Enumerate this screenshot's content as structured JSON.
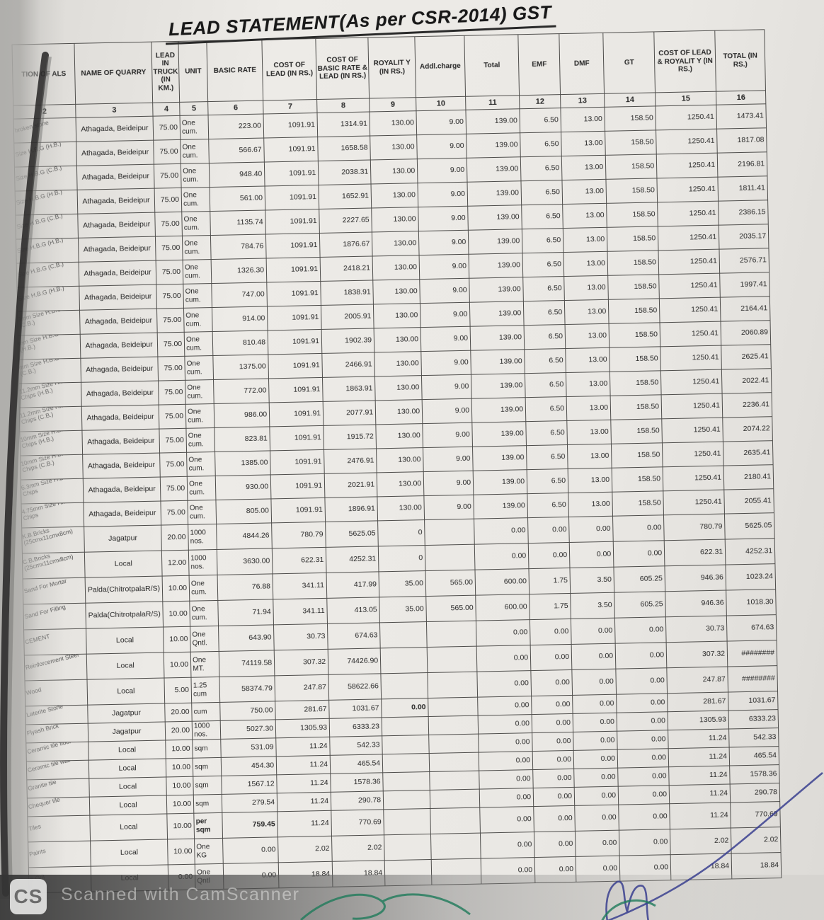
{
  "title": "LEAD STATEMENT(As per CSR-2014) GST",
  "watermark": {
    "logo": "CS",
    "text": "Scanned with CamScanner"
  },
  "pen_colors": {
    "blue": "#3a3f8f",
    "green": "#1e7a5a"
  },
  "table": {
    "columns": [
      {
        "key": "m",
        "label": "TION OF ALS",
        "num": "2"
      },
      {
        "key": "q",
        "label": "NAME OF QUARRY",
        "num": "3"
      },
      {
        "key": "lead",
        "label": "LEAD IN TRUCK (IN KM.)",
        "num": "4"
      },
      {
        "key": "unit",
        "label": "UNIT",
        "num": "5"
      },
      {
        "key": "basic",
        "label": "BASIC RATE",
        "num": "6"
      },
      {
        "key": "clead",
        "label": "COST OF LEAD (IN RS.)",
        "num": "7"
      },
      {
        "key": "cbl",
        "label": "COST OF BASIC RATE & LEAD (IN RS.)",
        "num": "8"
      },
      {
        "key": "roy",
        "label": "ROYALIT Y (IN RS.)",
        "num": "9"
      },
      {
        "key": "addl",
        "label": "Addl.charge",
        "num": "10"
      },
      {
        "key": "total",
        "label": "Total",
        "num": "11"
      },
      {
        "key": "emf",
        "label": "EMF",
        "num": "12"
      },
      {
        "key": "dmf",
        "label": "DMF",
        "num": "13"
      },
      {
        "key": "gt",
        "label": "GT",
        "num": "14"
      },
      {
        "key": "clr",
        "label": "COST OF LEAD & ROYALIT Y (IN RS.)",
        "num": "15"
      },
      {
        "key": "tot",
        "label": "TOTAL (IN RS.)",
        "num": "16"
      }
    ],
    "rows": [
      {
        "m": "broken stone",
        "q": "Athagada, Beideipur",
        "lead": "75.00",
        "unit": "One cum.",
        "basic": "223.00",
        "clead": "1091.91",
        "cbl": "1314.91",
        "roy": "130.00",
        "addl": "9.00",
        "total": "139.00",
        "emf": "6.50",
        "dmf": "13.00",
        "gt": "158.50",
        "clr": "1250.41",
        "tot": "1473.41"
      },
      {
        "m": "Size H.B.G (H.B.)",
        "q": "Athagada, Beideipur",
        "lead": "75.00",
        "unit": "One cum.",
        "basic": "566.67",
        "clead": "1091.91",
        "cbl": "1658.58",
        "roy": "130.00",
        "addl": "9.00",
        "total": "139.00",
        "emf": "6.50",
        "dmf": "13.00",
        "gt": "158.50",
        "clr": "1250.41",
        "tot": "1817.08"
      },
      {
        "m": "Size H.B.G (C.B.)",
        "q": "Athagada, Beideipur",
        "lead": "75.00",
        "unit": "One cum.",
        "basic": "948.40",
        "clead": "1091.91",
        "cbl": "2038.31",
        "roy": "130.00",
        "addl": "9.00",
        "total": "139.00",
        "emf": "6.50",
        "dmf": "13.00",
        "gt": "158.50",
        "clr": "1250.41",
        "tot": "2196.81"
      },
      {
        "m": "Size H.B.G (H.B.)",
        "q": "Athagada, Beideipur",
        "lead": "75.00",
        "unit": "One cum.",
        "basic": "561.00",
        "clead": "1091.91",
        "cbl": "1652.91",
        "roy": "130.00",
        "addl": "9.00",
        "total": "139.00",
        "emf": "6.50",
        "dmf": "13.00",
        "gt": "158.50",
        "clr": "1250.41",
        "tot": "1811.41"
      },
      {
        "m": "Size H.B.G (C.B.)",
        "q": "Athagada, Beideipur",
        "lead": "75.00",
        "unit": "One cum.",
        "basic": "1135.74",
        "clead": "1091.91",
        "cbl": "2227.65",
        "roy": "130.00",
        "addl": "9.00",
        "total": "139.00",
        "emf": "6.50",
        "dmf": "13.00",
        "gt": "158.50",
        "clr": "1250.41",
        "tot": "2386.15"
      },
      {
        "m": "Size H.B.G (H.B.)",
        "q": "Athagada, Beideipur",
        "lead": "75.00",
        "unit": "One cum.",
        "basic": "784.76",
        "clead": "1091.91",
        "cbl": "1876.67",
        "roy": "130.00",
        "addl": "9.00",
        "total": "139.00",
        "emf": "6.50",
        "dmf": "13.00",
        "gt": "158.50",
        "clr": "1250.41",
        "tot": "2035.17"
      },
      {
        "m": "Size H.B.G (C.B.)",
        "q": "Athagada, Beideipur",
        "lead": "75.00",
        "unit": "One cum.",
        "basic": "1326.30",
        "clead": "1091.91",
        "cbl": "2418.21",
        "roy": "130.00",
        "addl": "9.00",
        "total": "139.00",
        "emf": "6.50",
        "dmf": "13.00",
        "gt": "158.50",
        "clr": "1250.41",
        "tot": "2576.71"
      },
      {
        "m": "Size H.B.G (H.B.)",
        "q": "Athagada, Beideipur",
        "lead": "75.00",
        "unit": "One cum.",
        "basic": "747.00",
        "clead": "1091.91",
        "cbl": "1838.91",
        "roy": "130.00",
        "addl": "9.00",
        "total": "139.00",
        "emf": "6.50",
        "dmf": "13.00",
        "gt": "158.50",
        "clr": "1250.41",
        "tot": "1997.41"
      },
      {
        "m": "3mm Size H.B.G (C.B.)",
        "q": "Athagada, Beideipur",
        "lead": "75.00",
        "unit": "One cum.",
        "basic": "914.00",
        "clead": "1091.91",
        "cbl": "2005.91",
        "roy": "130.00",
        "addl": "9.00",
        "total": "139.00",
        "emf": "6.50",
        "dmf": "13.00",
        "gt": "158.50",
        "clr": "1250.41",
        "tot": "2164.41"
      },
      {
        "m": "mm Size H.B.G Chips (H.B.)",
        "q": "Athagada, Beideipur",
        "lead": "75.00",
        "unit": "One cum.",
        "basic": "810.48",
        "clead": "1091.91",
        "cbl": "1902.39",
        "roy": "130.00",
        "addl": "9.00",
        "total": "139.00",
        "emf": "6.50",
        "dmf": "13.00",
        "gt": "158.50",
        "clr": "1250.41",
        "tot": "2060.89"
      },
      {
        "m": "mm Size H.B.G Chips (C.B.)",
        "q": "Athagada, Beideipur",
        "lead": "75.00",
        "unit": "One cum.",
        "basic": "1375.00",
        "clead": "1091.91",
        "cbl": "2466.91",
        "roy": "130.00",
        "addl": "9.00",
        "total": "139.00",
        "emf": "6.50",
        "dmf": "13.00",
        "gt": "158.50",
        "clr": "1250.41",
        "tot": "2625.41"
      },
      {
        "m": "11.2mm Size H.B.G Chips (H.B.)",
        "q": "Athagada, Beideipur",
        "lead": "75.00",
        "unit": "One cum.",
        "basic": "772.00",
        "clead": "1091.91",
        "cbl": "1863.91",
        "roy": "130.00",
        "addl": "9.00",
        "total": "139.00",
        "emf": "6.50",
        "dmf": "13.00",
        "gt": "158.50",
        "clr": "1250.41",
        "tot": "2022.41"
      },
      {
        "m": "11.2mm Size H.B.G Chips (C.B.)",
        "q": "Athagada, Beideipur",
        "lead": "75.00",
        "unit": "One cum.",
        "basic": "986.00",
        "clead": "1091.91",
        "cbl": "2077.91",
        "roy": "130.00",
        "addl": "9.00",
        "total": "139.00",
        "emf": "6.50",
        "dmf": "13.00",
        "gt": "158.50",
        "clr": "1250.41",
        "tot": "2236.41"
      },
      {
        "m": "10mm Size H.B.G Chips (H.B.)",
        "q": "Athagada, Beideipur",
        "lead": "75.00",
        "unit": "One cum.",
        "basic": "823.81",
        "clead": "1091.91",
        "cbl": "1915.72",
        "roy": "130.00",
        "addl": "9.00",
        "total": "139.00",
        "emf": "6.50",
        "dmf": "13.00",
        "gt": "158.50",
        "clr": "1250.41",
        "tot": "2074.22"
      },
      {
        "m": "10mm Size H.B.G Chips (C.B.)",
        "q": "Athagada, Beideipur",
        "lead": "75.00",
        "unit": "One cum.",
        "basic": "1385.00",
        "clead": "1091.91",
        "cbl": "2476.91",
        "roy": "130.00",
        "addl": "9.00",
        "total": "139.00",
        "emf": "6.50",
        "dmf": "13.00",
        "gt": "158.50",
        "clr": "1250.41",
        "tot": "2635.41"
      },
      {
        "m": "6.3mm Size H.B.G Chips",
        "q": "Athagada, Beideipur",
        "lead": "75.00",
        "unit": "One cum.",
        "basic": "930.00",
        "clead": "1091.91",
        "cbl": "2021.91",
        "roy": "130.00",
        "addl": "9.00",
        "total": "139.00",
        "emf": "6.50",
        "dmf": "13.00",
        "gt": "158.50",
        "clr": "1250.41",
        "tot": "2180.41"
      },
      {
        "m": "4.75mm Size H.B.G Chips",
        "q": "Athagada, Beideipur",
        "lead": "75.00",
        "unit": "One cum.",
        "basic": "805.00",
        "clead": "1091.91",
        "cbl": "1896.91",
        "roy": "130.00",
        "addl": "9.00",
        "total": "139.00",
        "emf": "6.50",
        "dmf": "13.00",
        "gt": "158.50",
        "clr": "1250.41",
        "tot": "2055.41"
      },
      {
        "m": "K.B.Bricks (25cmx11cmx8cm)",
        "q": "Jagatpur",
        "lead": "20.00",
        "unit": "1000 nos.",
        "basic": "4844.26",
        "clead": "780.79",
        "cbl": "5625.05",
        "roy": "0",
        "addl": "",
        "total": "0.00",
        "emf": "0.00",
        "dmf": "0.00",
        "gt": "0.00",
        "clr": "780.79",
        "tot": "5625.05"
      },
      {
        "m": "C.B.Bricks (25cmx11cmx8cm)",
        "q": "Local",
        "lead": "12.00",
        "unit": "1000 nos.",
        "basic": "3630.00",
        "clead": "622.31",
        "cbl": "4252.31",
        "roy": "0",
        "addl": "",
        "total": "0.00",
        "emf": "0.00",
        "dmf": "0.00",
        "gt": "0.00",
        "clr": "622.31",
        "tot": "4252.31"
      },
      {
        "m": "Sand For Mortar",
        "q": "Palda(ChitrotpalaR/S)",
        "lead": "10.00",
        "unit": "One cum.",
        "basic": "76.88",
        "clead": "341.11",
        "cbl": "417.99",
        "roy": "35.00",
        "addl": "565.00",
        "total": "600.00",
        "emf": "1.75",
        "dmf": "3.50",
        "gt": "605.25",
        "clr": "946.36",
        "tot": "1023.24"
      },
      {
        "m": "Sand For Filling",
        "q": "Palda(ChitrotpalaR/S)",
        "lead": "10.00",
        "unit": "One cum.",
        "basic": "71.94",
        "clead": "341.11",
        "cbl": "413.05",
        "roy": "35.00",
        "addl": "565.00",
        "total": "600.00",
        "emf": "1.75",
        "dmf": "3.50",
        "gt": "605.25",
        "clr": "946.36",
        "tot": "1018.30"
      },
      {
        "m": "CEMENT",
        "q": "Local",
        "lead": "10.00",
        "unit": "One Qntl.",
        "basic": "643.90",
        "clead": "30.73",
        "cbl": "674.63",
        "roy": "",
        "addl": "",
        "total": "0.00",
        "emf": "0.00",
        "dmf": "0.00",
        "gt": "0.00",
        "clr": "30.73",
        "tot": "674.63"
      },
      {
        "m": "Reinforcement Steel",
        "q": "Local",
        "lead": "10.00",
        "unit": "One MT.",
        "basic": "74119.58",
        "clead": "307.32",
        "cbl": "74426.90",
        "roy": "",
        "addl": "",
        "total": "0.00",
        "emf": "0.00",
        "dmf": "0.00",
        "gt": "0.00",
        "clr": "307.32",
        "tot": "########"
      },
      {
        "m": "Wood",
        "q": "Local",
        "lead": "5.00",
        "unit": "1.25 cum",
        "basic": "58374.79",
        "clead": "247.87",
        "cbl": "58622.66",
        "roy": "",
        "addl": "",
        "total": "0.00",
        "emf": "0.00",
        "dmf": "0.00",
        "gt": "0.00",
        "clr": "247.87",
        "tot": "########"
      },
      {
        "m": "Laterite Stone",
        "q": "Jagatpur",
        "lead": "20.00",
        "unit": "cum",
        "basic": "750.00",
        "clead": "281.67",
        "cbl": "1031.67",
        "roy": "0.00",
        "addl": "",
        "total": "0.00",
        "emf": "0.00",
        "dmf": "0.00",
        "gt": "0.00",
        "clr": "281.67",
        "tot": "1031.67",
        "bold": [
          "roy"
        ]
      },
      {
        "m": "Flyash Brick",
        "q": "Jagatpur",
        "lead": "20.00",
        "unit": "1000 nos.",
        "basic": "5027.30",
        "clead": "1305.93",
        "cbl": "6333.23",
        "roy": "",
        "addl": "",
        "total": "0.00",
        "emf": "0.00",
        "dmf": "0.00",
        "gt": "0.00",
        "clr": "1305.93",
        "tot": "6333.23"
      },
      {
        "m": "Ceramic tile floor",
        "q": "Local",
        "lead": "10.00",
        "unit": "sqm",
        "basic": "531.09",
        "clead": "11.24",
        "cbl": "542.33",
        "roy": "",
        "addl": "",
        "total": "0.00",
        "emf": "0.00",
        "dmf": "0.00",
        "gt": "0.00",
        "clr": "11.24",
        "tot": "542.33"
      },
      {
        "m": "Ceramic tile wall",
        "q": "Local",
        "lead": "10.00",
        "unit": "sqm",
        "basic": "454.30",
        "clead": "11.24",
        "cbl": "465.54",
        "roy": "",
        "addl": "",
        "total": "0.00",
        "emf": "0.00",
        "dmf": "0.00",
        "gt": "0.00",
        "clr": "11.24",
        "tot": "465.54"
      },
      {
        "m": "Granite tile",
        "q": "Local",
        "lead": "10.00",
        "unit": "sqm",
        "basic": "1567.12",
        "clead": "11.24",
        "cbl": "1578.36",
        "roy": "",
        "addl": "",
        "total": "0.00",
        "emf": "0.00",
        "dmf": "0.00",
        "gt": "0.00",
        "clr": "11.24",
        "tot": "1578.36"
      },
      {
        "m": "Chequer tile",
        "q": "Local",
        "lead": "10.00",
        "unit": "sqm",
        "basic": "279.54",
        "clead": "11.24",
        "cbl": "290.78",
        "roy": "",
        "addl": "",
        "total": "0.00",
        "emf": "0.00",
        "dmf": "0.00",
        "gt": "0.00",
        "clr": "11.24",
        "tot": "290.78"
      },
      {
        "m": "Tiles",
        "q": "Local",
        "lead": "10.00",
        "unit": "per sqm",
        "basic": "759.45",
        "clead": "11.24",
        "cbl": "770.69",
        "roy": "",
        "addl": "",
        "total": "0.00",
        "emf": "0.00",
        "dmf": "0.00",
        "gt": "0.00",
        "clr": "11.24",
        "tot": "770.69",
        "bold": [
          "unit",
          "basic"
        ]
      },
      {
        "m": "Paints",
        "q": "Local",
        "lead": "10.00",
        "unit": "One KG",
        "basic": "0.00",
        "clead": "2.02",
        "cbl": "2.02",
        "roy": "",
        "addl": "",
        "total": "0.00",
        "emf": "0.00",
        "dmf": "0.00",
        "gt": "0.00",
        "clr": "2.02",
        "tot": "2.02"
      },
      {
        "m": "& Grit",
        "q": "Local",
        "lead": "0.00",
        "unit": "One Qntl",
        "basic": "0.00",
        "clead": "18.84",
        "cbl": "18.84",
        "roy": "",
        "addl": "",
        "total": "0.00",
        "emf": "0.00",
        "dmf": "0.00",
        "gt": "0.00",
        "clr": "18.84",
        "tot": "18.84"
      }
    ]
  }
}
